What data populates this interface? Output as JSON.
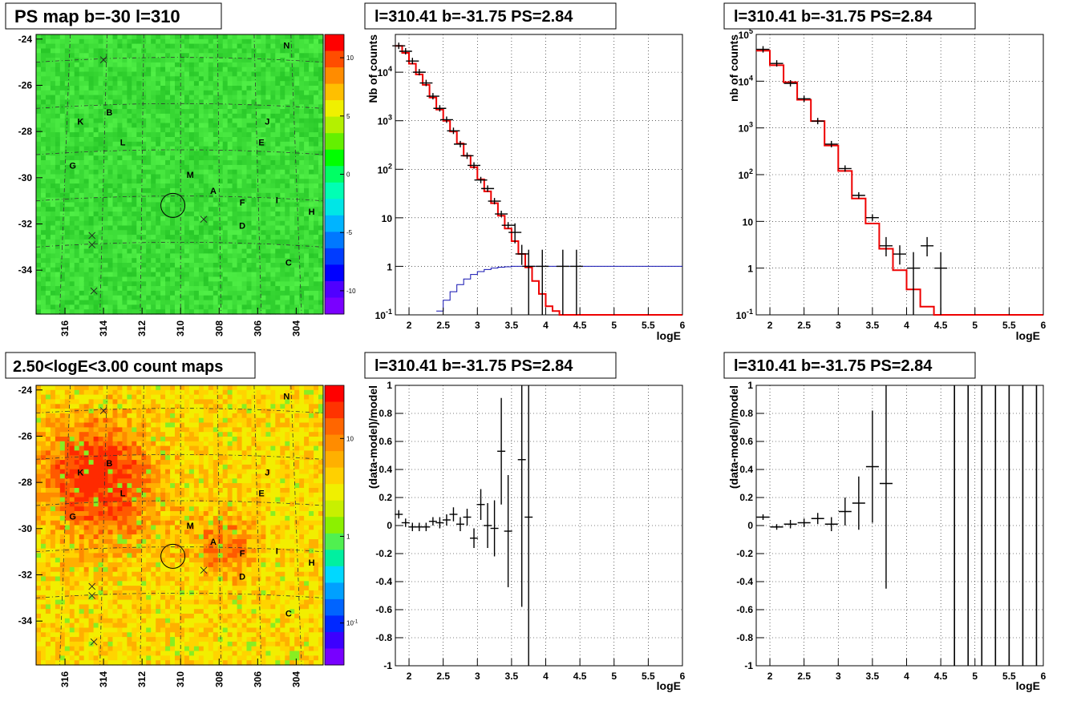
{
  "panels": {
    "ps_map": {
      "title": "PS map b=-30 l=310",
      "x_ticks": [
        "316",
        "314",
        "312",
        "310",
        "308",
        "306",
        "304"
      ],
      "y_ticks": [
        "-24",
        "-26",
        "-28",
        "-30",
        "-32",
        "-34"
      ],
      "colorbar_ticks": [
        "10",
        "5",
        "0",
        "-5",
        "-10"
      ],
      "colorbar_colors": [
        "#ff0000",
        "#ff4d00",
        "#ff8c00",
        "#ffbf00",
        "#f0f000",
        "#b4f000",
        "#64f000",
        "#00ff00",
        "#00ff64",
        "#00ffb4",
        "#00e6e6",
        "#00b4ff",
        "#0078ff",
        "#003cff",
        "#0000ff",
        "#5000ff",
        "#7a00ff"
      ],
      "labels": [
        {
          "t": "N",
          "lon": 304.5,
          "lat": -24.4
        },
        {
          "t": "K",
          "lon": 315.2,
          "lat": -27.7
        },
        {
          "t": "B",
          "lon": 313.7,
          "lat": -27.3
        },
        {
          "t": "J",
          "lon": 305.5,
          "lat": -27.7
        },
        {
          "t": "L",
          "lon": 313.0,
          "lat": -28.6
        },
        {
          "t": "E",
          "lon": 305.8,
          "lat": -28.6
        },
        {
          "t": "G",
          "lon": 315.6,
          "lat": -29.6
        },
        {
          "t": "M",
          "lon": 309.5,
          "lat": -30.0
        },
        {
          "t": "A",
          "lon": 308.3,
          "lat": -30.7
        },
        {
          "t": "F",
          "lon": 306.8,
          "lat": -31.2
        },
        {
          "t": "I",
          "lon": 305.0,
          "lat": -31.1
        },
        {
          "t": "H",
          "lon": 303.2,
          "lat": -31.6
        },
        {
          "t": "D",
          "lon": 306.8,
          "lat": -32.2
        },
        {
          "t": "C",
          "lon": 304.4,
          "lat": -33.8
        }
      ],
      "crosses": [
        {
          "lon": 314.0,
          "lat": -24.9
        },
        {
          "lon": 314.6,
          "lat": -32.5
        },
        {
          "lon": 314.6,
          "lat": -32.9
        },
        {
          "lon": 308.8,
          "lat": -31.8
        },
        {
          "lon": 314.5,
          "lat": -34.9
        }
      ],
      "circle": {
        "lon": 310.4,
        "lat": -31.2
      }
    },
    "count_map": {
      "title": "2.50<logE<3.00 count maps",
      "x_ticks": [
        "316",
        "314",
        "312",
        "310",
        "308",
        "306",
        "304"
      ],
      "y_ticks": [
        "-24",
        "-26",
        "-28",
        "-30",
        "-32",
        "-34"
      ],
      "colorbar_ticks": [
        "10",
        "1",
        "10-1"
      ],
      "colorbar_colors": [
        "#ff0000",
        "#ff3300",
        "#ff6600",
        "#ff8c00",
        "#ffb000",
        "#ffd000",
        "#f0f000",
        "#c8f000",
        "#8cf000",
        "#50f050",
        "#00f0a0",
        "#00d8ff",
        "#00a0ff",
        "#0064ff",
        "#0028ff",
        "#3c00ff",
        "#7800ff"
      ]
    },
    "spectrum_ps": {
      "title": "l=310.41 b=-31.75 PS=2.84",
      "ylabel": "Nb of counts",
      "xlabel": "logE",
      "x_ticks": [
        "2",
        "2.5",
        "3",
        "3.5",
        "4",
        "4.5",
        "5",
        "5.5",
        "6"
      ],
      "y_ticks": [
        "10-1",
        "1",
        "10",
        "102",
        "103",
        "104"
      ]
    },
    "spectrum_fit": {
      "title": "l=310.41 b=-31.75 PS=2.84",
      "ylabel": "nb of counts",
      "xlabel": "logE",
      "x_ticks": [
        "2",
        "2.5",
        "3",
        "3.5",
        "4",
        "4.5",
        "5",
        "5.5",
        "6"
      ],
      "y_ticks": [
        "10-1",
        "1",
        "10",
        "102",
        "103",
        "104",
        "105"
      ]
    },
    "residual_ps": {
      "title": "l=310.41 b=-31.75 PS=2.84",
      "ylabel": "(data-model)/model",
      "xlabel": "logE",
      "x_ticks": [
        "2",
        "2.5",
        "3",
        "3.5",
        "4",
        "4.5",
        "5",
        "5.5",
        "6"
      ],
      "y_ticks": [
        "-1",
        "-0.8",
        "-0.6",
        "-0.4",
        "-0.2",
        "0",
        "0.2",
        "0.4",
        "0.6",
        "0.8",
        "1"
      ]
    },
    "residual_fit": {
      "title": "l=310.41 b=-31.75 PS=2.84",
      "ylabel": "(data-model)/model",
      "xlabel": "logE",
      "x_ticks": [
        "2",
        "2.5",
        "3",
        "3.5",
        "4",
        "4.5",
        "5",
        "5.5",
        "6"
      ],
      "y_ticks": [
        "-1",
        "-0.8",
        "-0.6",
        "-0.4",
        "-0.2",
        "0",
        "0.2",
        "0.4",
        "0.6",
        "0.8",
        "1"
      ]
    }
  },
  "chart_data": [
    {
      "type": "heatmap",
      "title": "PS map b=-30 l=310",
      "xlim": [
        317.5,
        302.6
      ],
      "ylim": [
        -35.9,
        -23.8
      ],
      "z_range": [
        -12,
        12
      ],
      "grid": true
    },
    {
      "type": "heatmap",
      "title": "2.50<logE<3.00 count maps",
      "xlim": [
        317.5,
        302.6
      ],
      "ylim": [
        -35.9,
        -23.8
      ],
      "z_scale": "log",
      "z_range": [
        0.05,
        40
      ],
      "grid": true
    },
    {
      "type": "line",
      "title": "l=310.41 b=-31.75 PS=2.84",
      "xlabel": "logE",
      "ylabel": "Nb of counts",
      "xlim": [
        1.8,
        6.0
      ],
      "ylim": [
        0.1,
        60000
      ],
      "y_scale": "log",
      "grid": true,
      "model_red": {
        "x": [
          1.8,
          1.9,
          2.0,
          2.1,
          2.2,
          2.3,
          2.4,
          2.5,
          2.6,
          2.7,
          2.8,
          2.9,
          3.0,
          3.1,
          3.2,
          3.3,
          3.4,
          3.5,
          3.6,
          3.7,
          3.8,
          3.9,
          4.0,
          4.1,
          4.2,
          4.3,
          4.4,
          4.5,
          4.6,
          4.7,
          4.8,
          4.9,
          5.0,
          5.1,
          5.2,
          5.3,
          5.4,
          5.5,
          5.6,
          5.7,
          5.8,
          5.9
        ],
        "y": [
          35000,
          25000,
          15000,
          9000,
          5500,
          3000,
          1700,
          1000,
          600,
          340,
          190,
          110,
          62,
          35,
          20,
          11,
          6,
          3.3,
          1.8,
          0.95,
          0.5,
          0.27,
          0.15,
          0.12,
          0.1,
          0.1,
          0.1,
          0.1,
          0.1,
          0.1,
          0.1,
          0.1,
          0.1,
          0.1,
          0.1,
          0.1,
          0.1,
          0.1,
          0.1,
          0.1,
          0.1,
          0.1
        ]
      },
      "model_blue": {
        "x": [
          2.4,
          2.5,
          2.6,
          2.7,
          2.8,
          2.9,
          3.0,
          3.1,
          3.2,
          3.3,
          3.4,
          3.5,
          3.6,
          3.7,
          3.8,
          3.9,
          4.0,
          4.1,
          4.2,
          4.3,
          4.4,
          4.5,
          4.6,
          4.7,
          4.8,
          4.9,
          5.0,
          5.1,
          5.2,
          5.3,
          5.4,
          5.5,
          5.6,
          5.7,
          5.8,
          5.9
        ],
        "y": [
          0.12,
          0.2,
          0.3,
          0.42,
          0.55,
          0.68,
          0.78,
          0.86,
          0.92,
          0.96,
          0.98,
          1.0,
          1.0,
          1.0,
          1.0,
          1.0,
          1.0,
          1.0,
          1.0,
          1.0,
          1.0,
          1.0,
          1.0,
          1.0,
          1.0,
          1.0,
          1.0,
          1.0,
          1.0,
          1.0,
          1.0,
          1.0,
          1.0,
          1.0,
          1.0,
          1.0
        ]
      },
      "data_points": [
        {
          "x": 1.85,
          "y": 35000
        },
        {
          "x": 1.95,
          "y": 27000
        },
        {
          "x": 2.05,
          "y": 17000
        },
        {
          "x": 2.15,
          "y": 10000
        },
        {
          "x": 2.25,
          "y": 6000
        },
        {
          "x": 2.35,
          "y": 3200
        },
        {
          "x": 2.45,
          "y": 1800
        },
        {
          "x": 2.55,
          "y": 1050
        },
        {
          "x": 2.65,
          "y": 620
        },
        {
          "x": 2.75,
          "y": 330
        },
        {
          "x": 2.85,
          "y": 190
        },
        {
          "x": 2.95,
          "y": 120
        },
        {
          "x": 3.05,
          "y": 60
        },
        {
          "x": 3.15,
          "y": 40
        },
        {
          "x": 3.25,
          "y": 22
        },
        {
          "x": 3.35,
          "y": 12
        },
        {
          "x": 3.45,
          "y": 7
        },
        {
          "x": 3.55,
          "y": 5
        },
        {
          "x": 3.65,
          "y": 1.8
        },
        {
          "x": 3.75,
          "y": 1.0
        },
        {
          "x": 3.95,
          "y": 1.0
        },
        {
          "x": 4.25,
          "y": 1.0
        },
        {
          "x": 4.45,
          "y": 1.0
        }
      ]
    },
    {
      "type": "line",
      "title": "l=310.41 b=-31.75 PS=2.84",
      "xlabel": "logE",
      "ylabel": "nb of counts",
      "xlim": [
        1.8,
        6.0
      ],
      "ylim": [
        0.1,
        100000
      ],
      "y_scale": "log",
      "grid": true,
      "model_red": {
        "x": [
          1.8,
          2.0,
          2.2,
          2.4,
          2.6,
          2.8,
          3.0,
          3.2,
          3.4,
          3.6,
          3.8,
          4.0,
          4.2,
          4.4,
          4.6,
          4.8,
          5.0,
          5.2,
          5.4,
          5.6,
          5.8
        ],
        "y": [
          45000,
          22000,
          9500,
          4000,
          1400,
          420,
          120,
          31,
          9,
          2.6,
          0.9,
          0.35,
          0.15,
          0.1,
          0.1,
          0.1,
          0.1,
          0.1,
          0.1,
          0.1,
          0.1
        ]
      },
      "data_points": [
        {
          "x": 1.9,
          "y": 48000
        },
        {
          "x": 2.1,
          "y": 24000
        },
        {
          "x": 2.3,
          "y": 9000
        },
        {
          "x": 2.5,
          "y": 4200
        },
        {
          "x": 2.7,
          "y": 1400
        },
        {
          "x": 2.9,
          "y": 450
        },
        {
          "x": 3.1,
          "y": 135
        },
        {
          "x": 3.3,
          "y": 36
        },
        {
          "x": 3.5,
          "y": 12
        },
        {
          "x": 3.7,
          "y": 3
        },
        {
          "x": 3.9,
          "y": 2
        },
        {
          "x": 4.1,
          "y": 1
        },
        {
          "x": 4.3,
          "y": 3
        },
        {
          "x": 4.5,
          "y": 1
        }
      ]
    },
    {
      "type": "scatter",
      "title": "l=310.41 b=-31.75 PS=2.84",
      "xlabel": "logE",
      "ylabel": "(data-model)/model",
      "xlim": [
        1.8,
        6.0
      ],
      "ylim": [
        -1,
        1
      ],
      "grid": true,
      "points": [
        {
          "x": 1.85,
          "y": 0.08,
          "e": 0.03
        },
        {
          "x": 1.95,
          "y": 0.02,
          "e": 0.03
        },
        {
          "x": 2.05,
          "y": -0.01,
          "e": 0.03
        },
        {
          "x": 2.15,
          "y": -0.01,
          "e": 0.03
        },
        {
          "x": 2.25,
          "y": -0.01,
          "e": 0.03
        },
        {
          "x": 2.35,
          "y": 0.03,
          "e": 0.03
        },
        {
          "x": 2.45,
          "y": 0.02,
          "e": 0.04
        },
        {
          "x": 2.55,
          "y": 0.04,
          "e": 0.04
        },
        {
          "x": 2.65,
          "y": 0.08,
          "e": 0.05
        },
        {
          "x": 2.75,
          "y": 0.01,
          "e": 0.05
        },
        {
          "x": 2.85,
          "y": 0.06,
          "e": 0.06
        },
        {
          "x": 2.95,
          "y": -0.09,
          "e": 0.07
        },
        {
          "x": 3.05,
          "y": 0.15,
          "e": 0.11
        },
        {
          "x": 3.15,
          "y": 0.0,
          "e": 0.16
        },
        {
          "x": 3.25,
          "y": -0.02,
          "e": 0.2
        },
        {
          "x": 3.35,
          "y": 0.53,
          "e": 0.38
        },
        {
          "x": 3.45,
          "y": -0.04,
          "e": 0.4
        },
        {
          "x": 3.65,
          "y": 0.47,
          "e": 1.05
        },
        {
          "x": 3.75,
          "y": 0.06,
          "e": 1.2
        }
      ]
    },
    {
      "type": "scatter",
      "title": "l=310.41 b=-31.75 PS=2.84",
      "xlabel": "logE",
      "ylabel": "(data-model)/model",
      "xlim": [
        1.8,
        6.0
      ],
      "ylim": [
        -1,
        1
      ],
      "grid": true,
      "points": [
        {
          "x": 1.9,
          "y": 0.06,
          "e": 0.02
        },
        {
          "x": 2.1,
          "y": -0.01,
          "e": 0.02
        },
        {
          "x": 2.3,
          "y": 0.01,
          "e": 0.03
        },
        {
          "x": 2.5,
          "y": 0.02,
          "e": 0.03
        },
        {
          "x": 2.7,
          "y": 0.05,
          "e": 0.04
        },
        {
          "x": 2.9,
          "y": 0.01,
          "e": 0.05
        },
        {
          "x": 3.1,
          "y": 0.1,
          "e": 0.1
        },
        {
          "x": 3.3,
          "y": 0.16,
          "e": 0.19
        },
        {
          "x": 3.5,
          "y": 0.42,
          "e": 0.4
        },
        {
          "x": 3.7,
          "y": 0.3,
          "e": 0.75
        }
      ],
      "vertical_lines_x": [
        4.7,
        4.9,
        5.1,
        5.3,
        5.5,
        5.7,
        5.9
      ]
    }
  ]
}
